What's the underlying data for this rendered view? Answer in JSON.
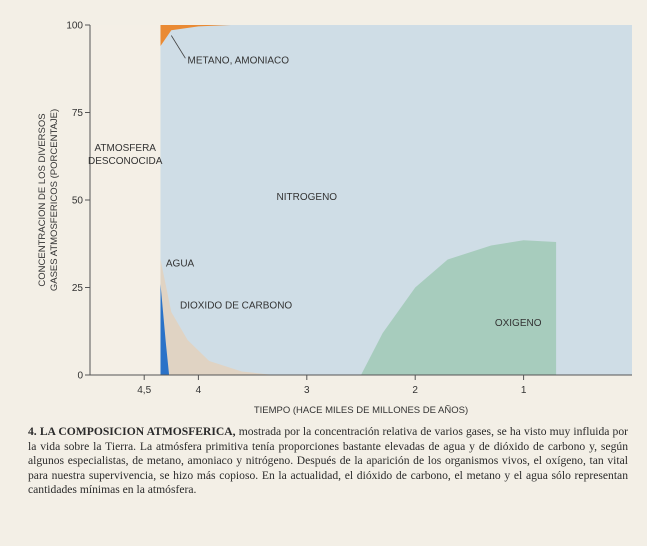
{
  "chart_data": {
    "type": "area",
    "title": "",
    "xlabel": "TIEMPO (HACE MILES DE MILLONES DE AÑOS)",
    "ylabel_lines": [
      "CONCENTRACION DE LOS DIVERSOS",
      "GASES ATMOSFERICOS (PORCENTAJE)"
    ],
    "xlim": [
      5.0,
      0.0
    ],
    "x_reversed": true,
    "ylim": [
      0,
      100
    ],
    "x_ticks": [
      {
        "value": 4.5,
        "label": "4,5"
      },
      {
        "value": 4,
        "label": "4"
      },
      {
        "value": 3,
        "label": "3"
      },
      {
        "value": 2,
        "label": "2"
      },
      {
        "value": 1,
        "label": "1"
      }
    ],
    "y_ticks": [
      {
        "value": 0,
        "label": "0"
      },
      {
        "value": 25,
        "label": "25"
      },
      {
        "value": 50,
        "label": "50"
      },
      {
        "value": 75,
        "label": "75"
      },
      {
        "value": 100,
        "label": "100"
      }
    ],
    "unknown_region": {
      "label_lines": [
        "ATMOSFERA",
        "DESCONOCIDA"
      ],
      "x_range": [
        5.0,
        4.35
      ]
    },
    "series": [
      {
        "name": "AGUA",
        "color": "#2a72c8",
        "points": [
          [
            4.35,
            0
          ],
          [
            4.35,
            26
          ],
          [
            4.3,
            9
          ],
          [
            4.27,
            0
          ]
        ]
      },
      {
        "name": "DIOXIDO DE CARBONO",
        "color": "#e0d3c3",
        "points": [
          [
            4.35,
            0
          ],
          [
            4.35,
            33
          ],
          [
            4.25,
            18
          ],
          [
            4.1,
            10
          ],
          [
            3.9,
            4
          ],
          [
            3.6,
            1
          ],
          [
            3.3,
            0
          ]
        ]
      },
      {
        "name": "METANO, AMONIACO",
        "color": "#ea8a33",
        "points": [
          [
            4.35,
            100
          ],
          [
            4.35,
            94
          ],
          [
            4.25,
            98.5
          ],
          [
            4.0,
            99.6
          ],
          [
            3.7,
            100
          ]
        ]
      },
      {
        "name": "NITROGENO",
        "color": "#cfdde6",
        "points": []
      },
      {
        "name": "OXIGENO",
        "color": "#a7ccbd",
        "points": [
          [
            2.5,
            0
          ],
          [
            2.3,
            12
          ],
          [
            2.0,
            25
          ],
          [
            1.7,
            33
          ],
          [
            1.3,
            37
          ],
          [
            1.0,
            38.5
          ],
          [
            0.7,
            38
          ],
          [
            0.7,
            0
          ]
        ]
      }
    ]
  },
  "caption": {
    "bold": "4. LA COMPOSICION ATMOSFERICA,",
    "text": " mostrada por la concentración relativa de varios gases, se ha visto muy influida por la vida sobre la Tierra. La atmósfera primitiva tenía proporciones bastante elevadas de agua y de dióxido de carbono y, según algunos especialistas, de metano, amoniaco y nitrógeno. Después de la aparición de los organismos vivos, el oxígeno, tan vital para nuestra supervivencia, se hizo más copioso. En la actualidad, el dióxido de carbono, el metano y el agua sólo representan cantidades mínimas en la atmósfera."
  }
}
